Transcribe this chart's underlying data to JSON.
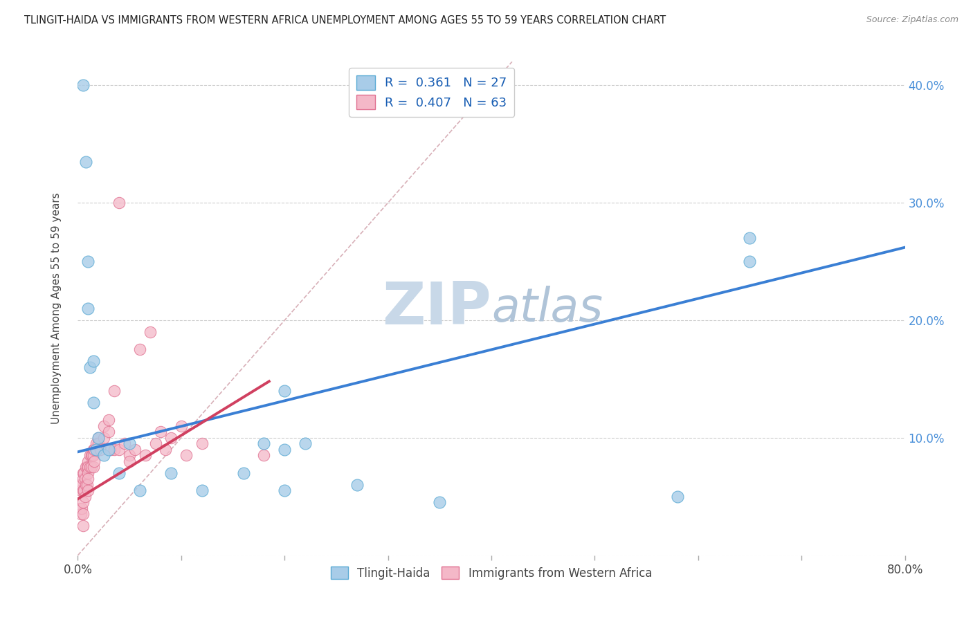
{
  "title": "TLINGIT-HAIDA VS IMMIGRANTS FROM WESTERN AFRICA UNEMPLOYMENT AMONG AGES 55 TO 59 YEARS CORRELATION CHART",
  "source": "Source: ZipAtlas.com",
  "ylabel": "Unemployment Among Ages 55 to 59 years",
  "xlim": [
    0,
    0.8
  ],
  "ylim": [
    0,
    0.42
  ],
  "xticks": [
    0.0,
    0.1,
    0.2,
    0.3,
    0.4,
    0.5,
    0.6,
    0.7,
    0.8
  ],
  "xtick_labels_show": [
    "0.0%",
    "",
    "",
    "",
    "",
    "",
    "",
    "",
    "80.0%"
  ],
  "yticks": [
    0.0,
    0.1,
    0.2,
    0.3,
    0.4
  ],
  "ytick_labels_right": [
    "",
    "10.0%",
    "20.0%",
    "30.0%",
    "40.0%"
  ],
  "blue_R": 0.361,
  "blue_N": 27,
  "pink_R": 0.407,
  "pink_N": 63,
  "blue_color": "#a8cce8",
  "blue_edge": "#5aaad4",
  "blue_line_color": "#3a7fd4",
  "pink_color": "#f4b8c8",
  "pink_edge": "#e07090",
  "pink_line_color": "#d04060",
  "watermark_zip_color": "#c8d8e8",
  "watermark_atlas_color": "#b0c8dc",
  "background_color": "#ffffff",
  "blue_scatter_x": [
    0.005,
    0.008,
    0.01,
    0.01,
    0.012,
    0.015,
    0.015,
    0.018,
    0.02,
    0.025,
    0.03,
    0.04,
    0.05,
    0.06,
    0.09,
    0.12,
    0.16,
    0.2,
    0.2,
    0.22,
    0.35,
    0.58,
    0.65,
    0.65,
    0.18,
    0.2,
    0.27
  ],
  "blue_scatter_y": [
    0.4,
    0.335,
    0.25,
    0.21,
    0.16,
    0.165,
    0.13,
    0.09,
    0.1,
    0.085,
    0.09,
    0.07,
    0.095,
    0.055,
    0.07,
    0.055,
    0.07,
    0.14,
    0.09,
    0.095,
    0.045,
    0.05,
    0.27,
    0.25,
    0.095,
    0.055,
    0.06
  ],
  "pink_scatter_x": [
    0.002,
    0.002,
    0.003,
    0.003,
    0.004,
    0.004,
    0.005,
    0.005,
    0.005,
    0.005,
    0.005,
    0.005,
    0.006,
    0.006,
    0.007,
    0.007,
    0.008,
    0.008,
    0.009,
    0.009,
    0.01,
    0.01,
    0.01,
    0.01,
    0.01,
    0.012,
    0.012,
    0.013,
    0.013,
    0.014,
    0.015,
    0.015,
    0.015,
    0.016,
    0.016,
    0.018,
    0.02,
    0.02,
    0.022,
    0.025,
    0.025,
    0.03,
    0.03,
    0.032,
    0.035,
    0.035,
    0.04,
    0.04,
    0.045,
    0.05,
    0.05,
    0.055,
    0.06,
    0.065,
    0.07,
    0.075,
    0.08,
    0.085,
    0.09,
    0.1,
    0.105,
    0.12,
    0.18
  ],
  "pink_scatter_y": [
    0.06,
    0.04,
    0.055,
    0.035,
    0.06,
    0.04,
    0.07,
    0.065,
    0.055,
    0.045,
    0.035,
    0.025,
    0.07,
    0.055,
    0.065,
    0.05,
    0.075,
    0.06,
    0.075,
    0.06,
    0.08,
    0.075,
    0.07,
    0.065,
    0.055,
    0.085,
    0.075,
    0.085,
    0.075,
    0.085,
    0.09,
    0.085,
    0.075,
    0.09,
    0.08,
    0.095,
    0.1,
    0.095,
    0.09,
    0.11,
    0.1,
    0.115,
    0.105,
    0.09,
    0.14,
    0.09,
    0.3,
    0.09,
    0.095,
    0.085,
    0.08,
    0.09,
    0.175,
    0.085,
    0.19,
    0.095,
    0.105,
    0.09,
    0.1,
    0.11,
    0.085,
    0.095,
    0.085
  ],
  "blue_line_x0": 0.0,
  "blue_line_x1": 0.8,
  "blue_line_y0": 0.088,
  "blue_line_y1": 0.262,
  "pink_line_x0": 0.0,
  "pink_line_x1": 0.185,
  "pink_line_y0": 0.048,
  "pink_line_y1": 0.148,
  "ref_line_x0": 0.0,
  "ref_line_x1": 0.42,
  "ref_line_y0": 0.0,
  "ref_line_y1": 0.42
}
